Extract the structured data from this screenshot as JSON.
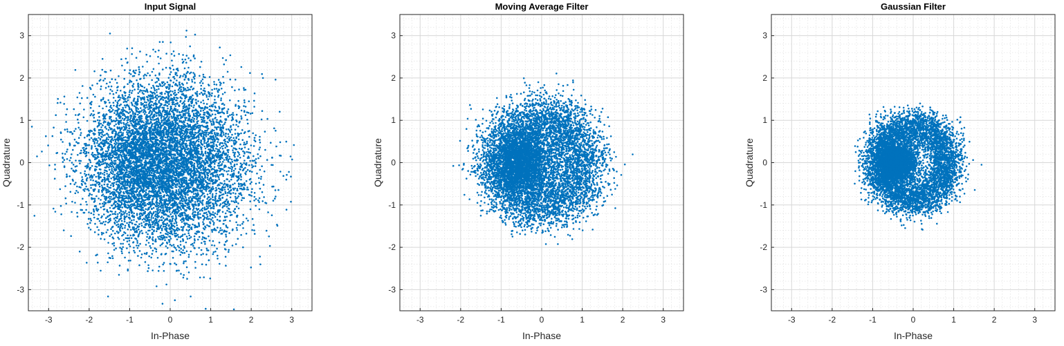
{
  "colors": {
    "marker": "#0072BD",
    "grid": "#d7d7d7",
    "axes": "#262626"
  },
  "chart_data": [
    {
      "type": "scatter",
      "title": "Input Signal",
      "xlabel": "In-Phase",
      "ylabel": "Quadrature",
      "xlim": [
        -3.5,
        3.5
      ],
      "ylim": [
        -3.5,
        3.5
      ],
      "xticks": [
        -3,
        -2,
        -1,
        0,
        1,
        2,
        3
      ],
      "yticks": [
        -3,
        -2,
        -1,
        0,
        1,
        2,
        3
      ],
      "grid": true,
      "minor_grid": true,
      "approx_points": 8000,
      "approx_radius_rms": 1.0,
      "noise_std": 0.75
    },
    {
      "type": "scatter",
      "title": "Moving Average Filter",
      "xlabel": "In-Phase",
      "ylabel": "Quadrature",
      "xlim": [
        -3.5,
        3.5
      ],
      "ylim": [
        -3.5,
        3.5
      ],
      "xticks": [
        -3,
        -2,
        -1,
        0,
        1,
        2,
        3
      ],
      "yticks": [
        -3,
        -2,
        -1,
        0,
        1,
        2,
        3
      ],
      "grid": true,
      "minor_grid": true,
      "approx_points": 8000,
      "approx_radius_rms": 1.0,
      "noise_std": 0.35
    },
    {
      "type": "scatter",
      "title": "Gaussian Filter",
      "xlabel": "In-Phase",
      "ylabel": "Quadrature",
      "xlim": [
        -3.5,
        3.5
      ],
      "ylim": [
        -3.5,
        3.5
      ],
      "xticks": [
        -3,
        -2,
        -1,
        0,
        1,
        2,
        3
      ],
      "yticks": [
        -3,
        -2,
        -1,
        0,
        1,
        2,
        3
      ],
      "grid": true,
      "minor_grid": true,
      "approx_points": 8000,
      "approx_radius_rms": 0.85,
      "noise_std": 0.22
    }
  ]
}
